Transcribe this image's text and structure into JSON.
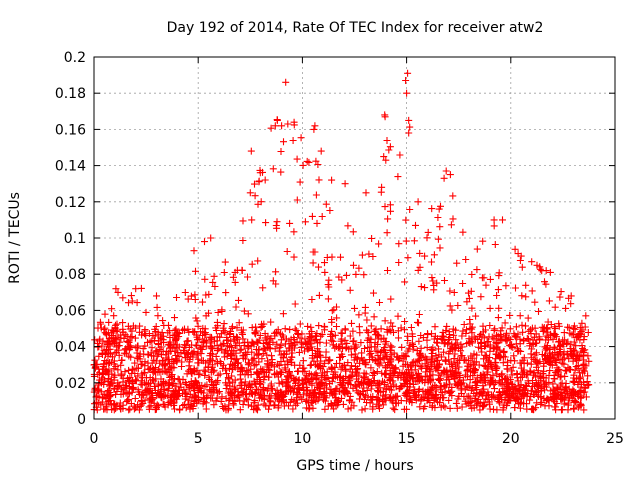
{
  "chart_data": {
    "type": "scatter",
    "title": "Day 192 of 2014, Rate Of TEC Index for receiver atw2",
    "xlabel": "GPS time / hours",
    "ylabel": "ROTI / TECUs",
    "xlim": [
      0,
      25
    ],
    "ylim": [
      0,
      0.2
    ],
    "x_ticks": [
      0,
      5,
      10,
      15,
      20,
      25
    ],
    "x_tick_labels": [
      "0",
      "5",
      "10",
      "15",
      "20",
      "25"
    ],
    "y_ticks": [
      0,
      0.02,
      0.04,
      0.06,
      0.08,
      0.1,
      0.12,
      0.14,
      0.16,
      0.18,
      0.2
    ],
    "y_tick_labels": [
      "0",
      "0.02",
      "0.04",
      "0.06",
      "0.08",
      "0.1",
      "0.12",
      "0.14",
      "0.16",
      "0.18",
      "0.2"
    ],
    "grid": true,
    "marker": "+",
    "series_color": "#ff0000",
    "series": [
      {
        "name": "ROTI",
        "x_range": [
          0,
          23.75
        ],
        "typical_range": [
          0.01,
          0.05
        ],
        "envelope_max": [
          [
            0,
            0.055
          ],
          [
            0.5,
            0.06
          ],
          [
            1,
            0.07
          ],
          [
            1.5,
            0.072
          ],
          [
            2,
            0.075
          ],
          [
            2.5,
            0.07
          ],
          [
            3,
            0.065
          ],
          [
            3.5,
            0.05
          ],
          [
            4,
            0.075
          ],
          [
            4.5,
            0.085
          ],
          [
            5,
            0.098
          ],
          [
            5.5,
            0.08
          ],
          [
            6,
            0.085
          ],
          [
            6.5,
            0.095
          ],
          [
            7,
            0.11
          ],
          [
            7.5,
            0.13
          ],
          [
            8,
            0.14
          ],
          [
            8.5,
            0.165
          ],
          [
            9,
            0.185
          ],
          [
            9.5,
            0.165
          ],
          [
            10,
            0.155
          ],
          [
            10.5,
            0.16
          ],
          [
            11,
            0.15
          ],
          [
            11.5,
            0.12
          ],
          [
            12,
            0.125
          ],
          [
            12.5,
            0.115
          ],
          [
            13,
            0.11
          ],
          [
            13.5,
            0.13
          ],
          [
            14,
            0.17
          ],
          [
            14.5,
            0.13
          ],
          [
            15,
            0.19
          ],
          [
            15.5,
            0.12
          ],
          [
            16,
            0.125
          ],
          [
            16.5,
            0.13
          ],
          [
            17,
            0.14
          ],
          [
            17.5,
            0.11
          ],
          [
            18,
            0.1
          ],
          [
            18.5,
            0.105
          ],
          [
            19,
            0.105
          ],
          [
            19.5,
            0.115
          ],
          [
            20,
            0.1
          ],
          [
            20.5,
            0.09
          ],
          [
            21,
            0.09
          ],
          [
            21.5,
            0.085
          ],
          [
            22,
            0.082
          ],
          [
            22.5,
            0.07
          ],
          [
            23,
            0.065
          ],
          [
            23.5,
            0.058
          ],
          [
            23.75,
            0.055
          ]
        ],
        "extreme_points": [
          [
            9.2,
            0.186
          ],
          [
            15.05,
            0.191
          ],
          [
            14.95,
            0.187
          ],
          [
            15.0,
            0.18
          ],
          [
            13.95,
            0.168
          ],
          [
            9.3,
            0.163
          ],
          [
            8.8,
            0.165
          ],
          [
            9.6,
            0.164
          ],
          [
            10.6,
            0.162
          ],
          [
            10.55,
            0.16
          ],
          [
            15.1,
            0.165
          ],
          [
            15.1,
            0.158
          ],
          [
            14.0,
            0.143
          ],
          [
            13.9,
            0.145
          ],
          [
            16.9,
            0.137
          ],
          [
            16.8,
            0.133
          ],
          [
            17.1,
            0.135
          ],
          [
            7.55,
            0.148
          ],
          [
            7.5,
            0.125
          ],
          [
            12.05,
            0.13
          ],
          [
            13.05,
            0.125
          ],
          [
            11.4,
            0.132
          ],
          [
            8.7,
            0.162
          ],
          [
            9.0,
            0.162
          ],
          [
            10.9,
            0.148
          ],
          [
            15.55,
            0.12
          ],
          [
            19.2,
            0.11
          ],
          [
            19.6,
            0.11
          ],
          [
            20.5,
            0.09
          ],
          [
            5.6,
            0.1
          ],
          [
            5.3,
            0.098
          ],
          [
            4.8,
            0.093
          ],
          [
            2.0,
            0.072
          ],
          [
            1.05,
            0.072
          ],
          [
            3.0,
            0.068
          ],
          [
            21.7,
            0.082
          ],
          [
            21.9,
            0.081
          ],
          [
            22.9,
            0.068
          ],
          [
            23.6,
            0.057
          ]
        ]
      }
    ]
  }
}
